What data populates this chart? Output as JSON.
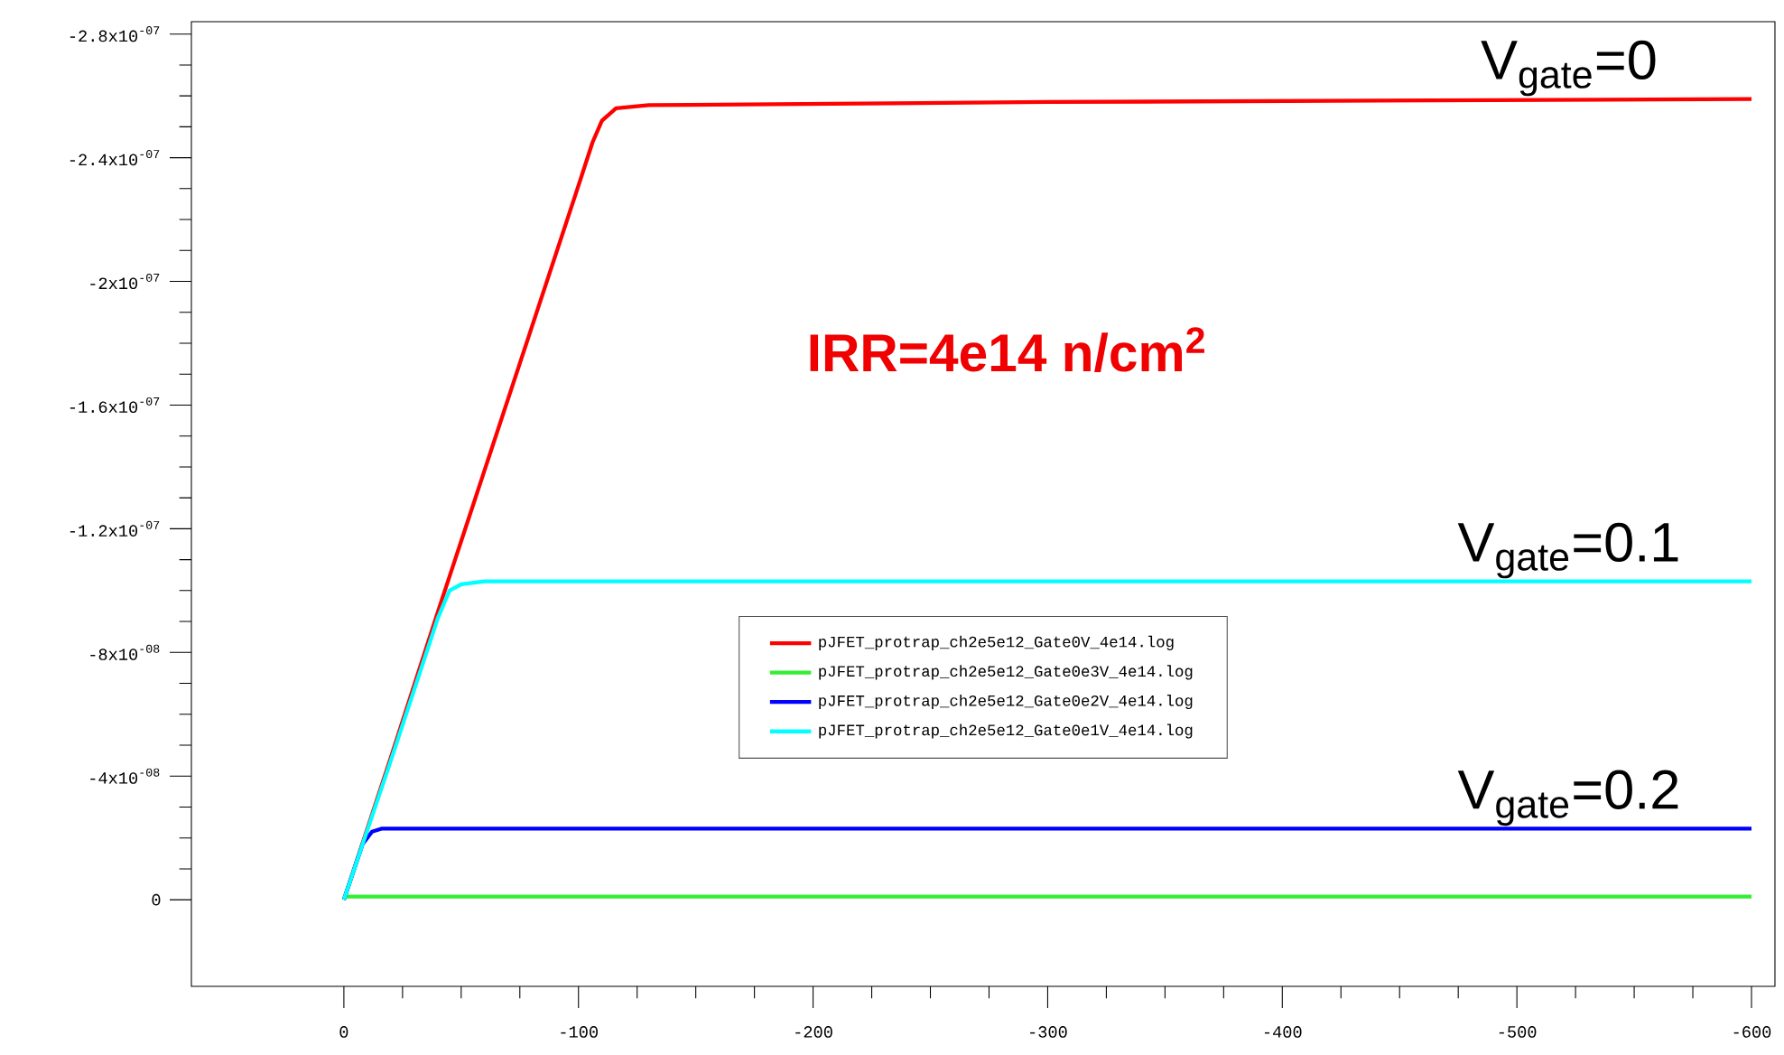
{
  "chart_data": {
    "type": "line",
    "series": [
      {
        "name": "pJFET_protrap_ch2e5e12_Gate0V_4e14.log",
        "color": "#ff0000",
        "x": [
          0,
          -20,
          -40,
          -60,
          -80,
          -100,
          -106,
          -110,
          -116,
          -130,
          -300,
          -600
        ],
        "values": [
          0,
          -4.6e-08,
          -9.3e-08,
          -1.39e-07,
          -1.85e-07,
          -2.31e-07,
          -2.45e-07,
          -2.52e-07,
          -2.56e-07,
          -2.57e-07,
          -2.58e-07,
          -2.59e-07
        ]
      },
      {
        "name": "pJFET_protrap_ch2e5e12_Gate0e3V_4e14.log",
        "color": "#33ee33",
        "x": [
          0,
          -600
        ],
        "values": [
          -1e-09,
          -1e-09
        ]
      },
      {
        "name": "pJFET_protrap_ch2e5e12_Gate0e2V_4e14.log",
        "color": "#0000ff",
        "x": [
          0,
          -8,
          -12,
          -16,
          -600
        ],
        "values": [
          0,
          -1.8e-08,
          -2.2e-08,
          -2.3e-08,
          -2.3e-08
        ]
      },
      {
        "name": "pJFET_protrap_ch2e5e12_Gate0e1V_4e14.log",
        "color": "#00ffff",
        "x": [
          0,
          -20,
          -40,
          -45,
          -50,
          -60,
          -600
        ],
        "values": [
          0,
          -4.5e-08,
          -9.1e-08,
          -1e-07,
          -1.02e-07,
          -1.03e-07,
          -1.03e-07
        ]
      }
    ],
    "xlim": [
      65,
      -610
    ],
    "xticks": [
      0,
      -100,
      -200,
      -300,
      -400,
      -500,
      -600
    ],
    "ylim": [
      2.8e-08,
      -2.84e-07
    ],
    "yticks": [
      {
        "value": 0,
        "label": "0"
      },
      {
        "value": -4e-08,
        "label": "-4x10$^{-08}$"
      },
      {
        "value": -8e-08,
        "label": "-8x10$^{-08}$"
      },
      {
        "value": -1.2e-07,
        "label": "-1.2x10$^{-07}$"
      },
      {
        "value": -1.6e-07,
        "label": "-1.6x10$^{-07}$"
      },
      {
        "value": -2e-07,
        "label": "-2x10$^{-07}$"
      },
      {
        "value": -2.4e-07,
        "label": "-2.4x10$^{-07}$"
      },
      {
        "value": -2.8e-07,
        "label": "-2.8x10$^{-07}$"
      }
    ],
    "legend": "center",
    "annotations": [
      {
        "text": "V$_{gate}$=0",
        "y": -2.59e-07
      },
      {
        "text": "V$_{gate}$=0.1",
        "y": -1.03e-07
      },
      {
        "text": "V$_{gate}$=0.2",
        "y": -2.3e-08
      },
      "IRR=4e14 n/cm$^{2}$"
    ]
  }
}
